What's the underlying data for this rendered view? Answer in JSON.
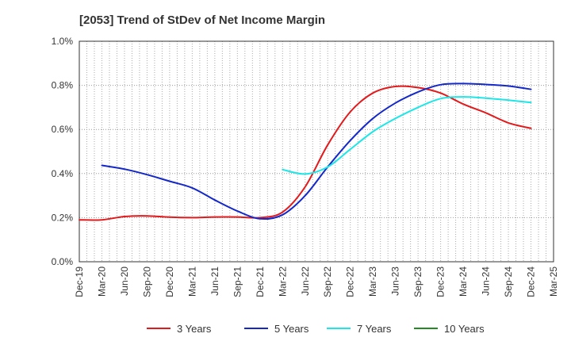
{
  "chart_data": {
    "type": "line",
    "title": "[2053]  Trend of StDev of Net Income Margin",
    "xlabel": "",
    "ylabel": "",
    "x_ticks": [
      "Dec-19",
      "Mar-20",
      "Jun-20",
      "Sep-20",
      "Dec-20",
      "Mar-21",
      "Jun-21",
      "Sep-21",
      "Dec-21",
      "Mar-22",
      "Jun-22",
      "Sep-22",
      "Dec-22",
      "Mar-23",
      "Jun-23",
      "Sep-23",
      "Dec-23",
      "Mar-24",
      "Jun-24",
      "Sep-24",
      "Dec-24",
      "Mar-25"
    ],
    "y_ticks": [
      "0.0%",
      "0.2%",
      "0.4%",
      "0.6%",
      "0.8%",
      "1.0%"
    ],
    "ylim": [
      0,
      1.0
    ],
    "y_unit": "%",
    "grid": true,
    "legend_position": "bottom",
    "series": [
      {
        "name": "3 Years",
        "color": "#e31a1c",
        "points": [
          [
            "Dec-19",
            0.19
          ],
          [
            "Mar-20",
            0.19
          ],
          [
            "Jun-20",
            0.205
          ],
          [
            "Sep-20",
            0.208
          ],
          [
            "Dec-20",
            0.202
          ],
          [
            "Mar-21",
            0.2
          ],
          [
            "Jun-21",
            0.203
          ],
          [
            "Sep-21",
            0.203
          ],
          [
            "Dec-21",
            0.2
          ],
          [
            "Mar-22",
            0.225
          ],
          [
            "Jun-22",
            0.34
          ],
          [
            "Sep-22",
            0.53
          ],
          [
            "Dec-22",
            0.68
          ],
          [
            "Mar-23",
            0.765
          ],
          [
            "Jun-23",
            0.795
          ],
          [
            "Sep-23",
            0.79
          ],
          [
            "Dec-23",
            0.765
          ],
          [
            "Mar-24",
            0.715
          ],
          [
            "Jun-24",
            0.675
          ],
          [
            "Sep-24",
            0.63
          ],
          [
            "Dec-24",
            0.605
          ]
        ]
      },
      {
        "name": "5 Years",
        "color": "#1428c8",
        "points": [
          [
            "Mar-20",
            0.437
          ],
          [
            "Jun-20",
            0.42
          ],
          [
            "Sep-20",
            0.395
          ],
          [
            "Dec-20",
            0.365
          ],
          [
            "Mar-21",
            0.335
          ],
          [
            "Jun-21",
            0.28
          ],
          [
            "Sep-21",
            0.23
          ],
          [
            "Dec-21",
            0.195
          ],
          [
            "Mar-22",
            0.213
          ],
          [
            "Jun-22",
            0.3
          ],
          [
            "Sep-22",
            0.43
          ],
          [
            "Dec-22",
            0.55
          ],
          [
            "Mar-23",
            0.65
          ],
          [
            "Jun-23",
            0.72
          ],
          [
            "Sep-23",
            0.77
          ],
          [
            "Dec-23",
            0.803
          ],
          [
            "Mar-24",
            0.808
          ],
          [
            "Jun-24",
            0.804
          ],
          [
            "Sep-24",
            0.797
          ],
          [
            "Dec-24",
            0.782
          ]
        ]
      },
      {
        "name": "7 Years",
        "color": "#1ee6e6",
        "points": [
          [
            "Mar-22",
            0.418
          ],
          [
            "Jun-22",
            0.398
          ],
          [
            "Sep-22",
            0.43
          ],
          [
            "Dec-22",
            0.51
          ],
          [
            "Mar-23",
            0.59
          ],
          [
            "Jun-23",
            0.65
          ],
          [
            "Sep-23",
            0.7
          ],
          [
            "Dec-23",
            0.74
          ],
          [
            "Mar-24",
            0.748
          ],
          [
            "Jun-24",
            0.742
          ],
          [
            "Sep-24",
            0.733
          ],
          [
            "Dec-24",
            0.722
          ]
        ]
      },
      {
        "name": "10 Years",
        "color": "#228b22",
        "points": []
      }
    ]
  }
}
